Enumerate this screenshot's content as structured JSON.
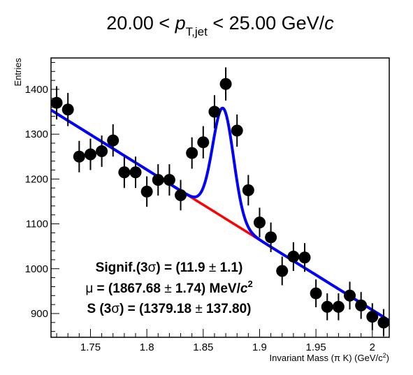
{
  "chart_data": {
    "type": "scatter",
    "title_parts": [
      "20.00 < ",
      "p",
      "T,jet",
      " < 25.00 GeV/",
      "c"
    ],
    "xlabel": "Invariant Mass (π K) (GeV/c",
    "xlabel_sup": "2",
    "xlabel_end": ")",
    "ylabel": "Entries",
    "xlim": [
      1.715,
      2.015
    ],
    "ylim": [
      847,
      1470
    ],
    "x_ticks": [
      1.75,
      1.8,
      1.85,
      1.9,
      1.95,
      2.0
    ],
    "x_tick_labels": [
      "1.75",
      "1.8",
      "1.85",
      "1.9",
      "1.95",
      "2"
    ],
    "y_ticks": [
      900,
      1000,
      1100,
      1200,
      1300,
      1400
    ],
    "y_tick_labels": [
      "900",
      "1000",
      "1100",
      "1200",
      "1300",
      "1400"
    ],
    "grid": false,
    "legend": "none",
    "series": [
      {
        "type": "scatter-errorbar",
        "color": "#000000",
        "x": [
          1.72,
          1.73,
          1.74,
          1.75,
          1.76,
          1.77,
          1.78,
          1.79,
          1.8,
          1.81,
          1.82,
          1.83,
          1.84,
          1.85,
          1.86,
          1.87,
          1.88,
          1.89,
          1.9,
          1.91,
          1.92,
          1.93,
          1.94,
          1.95,
          1.96,
          1.97,
          1.98,
          1.99,
          2.0,
          2.01
        ],
        "y": [
          1370,
          1355,
          1250,
          1255,
          1262,
          1286,
          1215,
          1215,
          1172,
          1198,
          1198,
          1164,
          1258,
          1282,
          1350,
          1412,
          1308,
          1175,
          1103,
          1070,
          995,
          1027,
          1025,
          945,
          915,
          915,
          940,
          918,
          893,
          880
        ],
        "err": [
          37,
          37,
          35,
          35,
          35,
          36,
          35,
          35,
          34,
          35,
          35,
          34,
          35,
          36,
          37,
          37,
          36,
          34,
          33,
          33,
          32,
          32,
          32,
          31,
          30,
          30,
          31,
          30,
          30,
          30
        ]
      },
      {
        "type": "line",
        "role": "background",
        "color": "#ff0000",
        "model": "linear",
        "a": 1346,
        "b": -1565,
        "x0": 1.72,
        "range": [
          1.715,
          2.015
        ]
      },
      {
        "type": "line",
        "role": "total-fit",
        "color": "#0000ff",
        "model": "linear+gaussian",
        "a": 1346,
        "b": -1565,
        "x0": 1.72,
        "peak_mu": 1.8677,
        "peak_sigma": 0.0092,
        "peak_amp": 243,
        "range": [
          1.715,
          2.015
        ]
      }
    ],
    "annotations": [
      {
        "parts": [
          "Signif.(3",
          "σ",
          ") = (11.9 ",
          "±",
          " 1.1)"
        ]
      },
      {
        "parts": [
          "μ",
          " = (1867.68 ",
          "±",
          " 1.74) MeV/",
          "c",
          "2"
        ]
      },
      {
        "parts": [
          "S (3",
          "σ",
          ") = (1379.18 ",
          "±",
          " 137.80)"
        ]
      }
    ]
  }
}
